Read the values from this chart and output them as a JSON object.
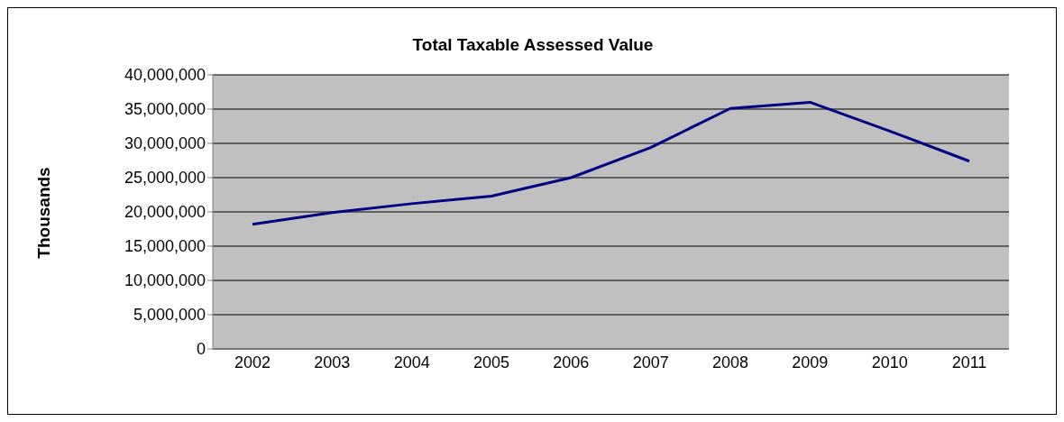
{
  "chart_data": {
    "type": "line",
    "title": "Total Taxable Assessed Value",
    "ylabel": "Thousands",
    "categories": [
      "2002",
      "2003",
      "2004",
      "2005",
      "2006",
      "2007",
      "2008",
      "2009",
      "2010",
      "2011"
    ],
    "series": [
      {
        "color": "#000080",
        "values": [
          18200000,
          19900000,
          21200000,
          22300000,
          25000000,
          29400000,
          35100000,
          36000000,
          31800000,
          27400000
        ]
      }
    ],
    "ylim": [
      0,
      40000000
    ],
    "yticks": [
      0,
      {
        "value": 5000000,
        "label": "5,000,000"
      },
      {
        "value": 10000000,
        "label": "10,000,000"
      },
      {
        "value": 15000000,
        "label": "15,000,000"
      },
      {
        "value": 20000000,
        "label": "20,000,000"
      },
      {
        "value": 25000000,
        "label": "25,000,000"
      },
      {
        "value": 30000000,
        "label": "30,000,000"
      },
      {
        "value": 35000000,
        "label": "35,000,000"
      },
      {
        "value": 40000000,
        "label": "40,000,000"
      }
    ],
    "grid": "y",
    "legend": false,
    "marker": "none",
    "line_style": "solid"
  }
}
